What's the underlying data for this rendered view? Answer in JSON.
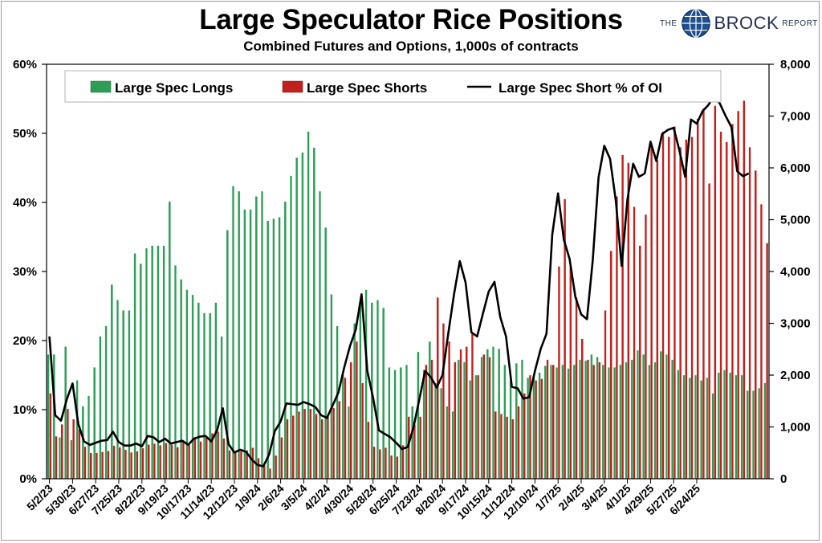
{
  "header": {
    "title": "Large Speculator Rice Positions",
    "subtitle": "Combined Futures and Options, 1,000s of contracts"
  },
  "logo": {
    "the": "THE",
    "brand": "BROCK",
    "report": "REPORT",
    "icon": "globe-icon"
  },
  "colors": {
    "longs": "#2e9e57",
    "shorts": "#c0211c",
    "line": "#000000"
  },
  "chart_data": {
    "type": "bar",
    "combo": "grouped bars (left-axis scale) with line overlay (right-axis scale)",
    "title": "Large Speculator Rice Positions",
    "subtitle": "Combined Futures and Options, 1,000s of contracts",
    "y_left": {
      "ticks": [
        "0%",
        "10%",
        "20%",
        "30%",
        "40%",
        "50%",
        "60%"
      ],
      "range": [
        0,
        60
      ]
    },
    "y_right": {
      "ticks": [
        "0",
        "1,000",
        "2,000",
        "3,000",
        "4,000",
        "5,000",
        "6,000",
        "7,000",
        "8,000"
      ],
      "range": [
        0,
        8000
      ]
    },
    "x_tick_labels": [
      "5/2/23",
      "5/30/23",
      "6/27/23",
      "7/25/23",
      "8/22/23",
      "9/19/23",
      "10/17/23",
      "11/14/23",
      "12/12/23",
      "1/9/24",
      "2/6/24",
      "3/5/24",
      "4/2/24",
      "4/30/24",
      "5/28/24",
      "6/25/24",
      "7/23/24",
      "8/20/24",
      "9/17/24",
      "10/15/24",
      "11/12/24",
      "12/10/24",
      "1/7/25",
      "2/4/25",
      "3/4/25",
      "4/1/25",
      "4/29/25",
      "5/27/25",
      "6/24/25"
    ],
    "legend": {
      "position": "top",
      "entries": [
        "Large Spec Longs",
        "Large Spec Shorts",
        "Large Spec Short % of OI"
      ]
    },
    "grid": false,
    "series": [
      {
        "name": "Large Spec Longs",
        "type": "bar",
        "axis": "right",
        "units": "contracts",
        "values": [
          2400,
          2400,
          800,
          2550,
          750,
          1900,
          1400,
          1600,
          2150,
          2750,
          2950,
          3750,
          3450,
          3250,
          3250,
          4350,
          4150,
          4450,
          4500,
          4500,
          4500,
          5350,
          4120,
          3850,
          3650,
          3550,
          3400,
          3200,
          3200,
          3400,
          2750,
          4800,
          5650,
          5550,
          5200,
          5200,
          5450,
          5550,
          4980,
          5020,
          5050,
          5350,
          5850,
          6200,
          6300,
          6700,
          6390,
          5550,
          4850,
          3560,
          2950,
          2000,
          1400,
          3000,
          3400,
          3650,
          3400,
          3450,
          3300,
          2150,
          2100,
          2150,
          2200,
          1400,
          2450,
          2100,
          2650,
          1850,
          1750,
          1400,
          1300,
          2300,
          2250,
          1900,
          2000,
          2350,
          2500,
          2550,
          2510,
          2200,
          1900,
          2230,
          2300,
          1950,
          2000,
          2050,
          2180,
          2200,
          2150,
          2200,
          2130,
          2200,
          2300,
          2280,
          2400,
          2350,
          2200,
          2150,
          2150,
          2200,
          2250,
          2300,
          2480,
          2400,
          2200,
          2250,
          2460,
          2400,
          2300,
          2100,
          2000,
          1950,
          2000,
          1900,
          1950,
          1650,
          2050,
          2100,
          2050,
          2000,
          2000,
          1700,
          1700,
          1750,
          1850
        ]
      },
      {
        "name": "Large Spec Shorts",
        "type": "bar",
        "axis": "right",
        "units": "contracts",
        "values": [
          1650,
          820,
          1050,
          1350,
          1150,
          950,
          620,
          500,
          500,
          520,
          540,
          640,
          610,
          560,
          510,
          530,
          590,
          660,
          680,
          650,
          690,
          660,
          610,
          730,
          650,
          770,
          720,
          800,
          880,
          910,
          780,
          550,
          500,
          530,
          550,
          600,
          400,
          250,
          200,
          450,
          800,
          1150,
          1220,
          1300,
          1350,
          1350,
          1250,
          1150,
          1220,
          1370,
          1500,
          1950,
          2250,
          2650,
          1850,
          1100,
          620,
          570,
          600,
          450,
          430,
          650,
          1200,
          1050,
          1200,
          2200,
          2300,
          3500,
          3000,
          2650,
          2250,
          2500,
          2550,
          2800,
          2000,
          2400,
          2350,
          1300,
          1250,
          1200,
          1150,
          1400,
          1650,
          2000,
          1900,
          1930,
          2300,
          2200,
          4100,
          5400,
          4100,
          3500,
          2700,
          2300,
          2200,
          2250,
          3250,
          4400,
          5450,
          6250,
          6100,
          5250,
          4500,
          5100,
          6450,
          6150,
          6700,
          6600,
          6800,
          6400,
          6550,
          6600,
          6950,
          7150,
          5700,
          7200,
          6700,
          6500,
          6850,
          7100,
          7300,
          6400,
          5950,
          5300,
          4550,
          4100,
          4500
        ]
      },
      {
        "name": "Large Spec Short % of OI",
        "type": "line",
        "axis": "left",
        "units": "percent",
        "values": [
          20.6,
          9.2,
          8.4,
          11.5,
          13.8,
          7.9,
          5.4,
          4.9,
          5.2,
          5.5,
          5.6,
          6.8,
          5.3,
          4.8,
          4.8,
          5.1,
          4.7,
          6.2,
          6.0,
          5.3,
          5.8,
          5.1,
          5.3,
          5.5,
          4.9,
          5.8,
          6.1,
          6.2,
          5.4,
          7.0,
          10.2,
          5.0,
          3.8,
          4.2,
          3.9,
          2.8,
          2.0,
          1.8,
          3.5,
          6.9,
          8.3,
          10.9,
          10.8,
          10.7,
          11.1,
          10.8,
          10.4,
          9.2,
          8.8,
          10.6,
          12.5,
          16.1,
          19.2,
          21.6,
          26.7,
          15.6,
          11.7,
          7.0,
          6.5,
          6.0,
          5.2,
          4.3,
          4.6,
          7.5,
          11.5,
          15.6,
          14.7,
          13.2,
          15.0,
          21.0,
          26.7,
          31.5,
          28.4,
          21.2,
          20.6,
          23.9,
          27.1,
          28.5,
          23.4,
          20.6,
          13.3,
          13.1,
          11.6,
          11.8,
          15.6,
          18.8,
          21.0,
          35.4,
          41.3,
          34.6,
          31.8,
          26.3,
          23.8,
          23.1,
          31.6,
          43.6,
          48.2,
          46.3,
          40.2,
          30.8,
          40.4,
          45.6,
          43.7,
          44.2,
          48.8,
          46.0,
          49.9,
          50.5,
          50.8,
          47.5,
          43.7,
          52.0,
          51.4,
          53.2,
          54.1,
          55.4,
          54.3,
          52.5,
          50.9,
          44.5,
          43.8,
          44.2
        ]
      }
    ]
  }
}
